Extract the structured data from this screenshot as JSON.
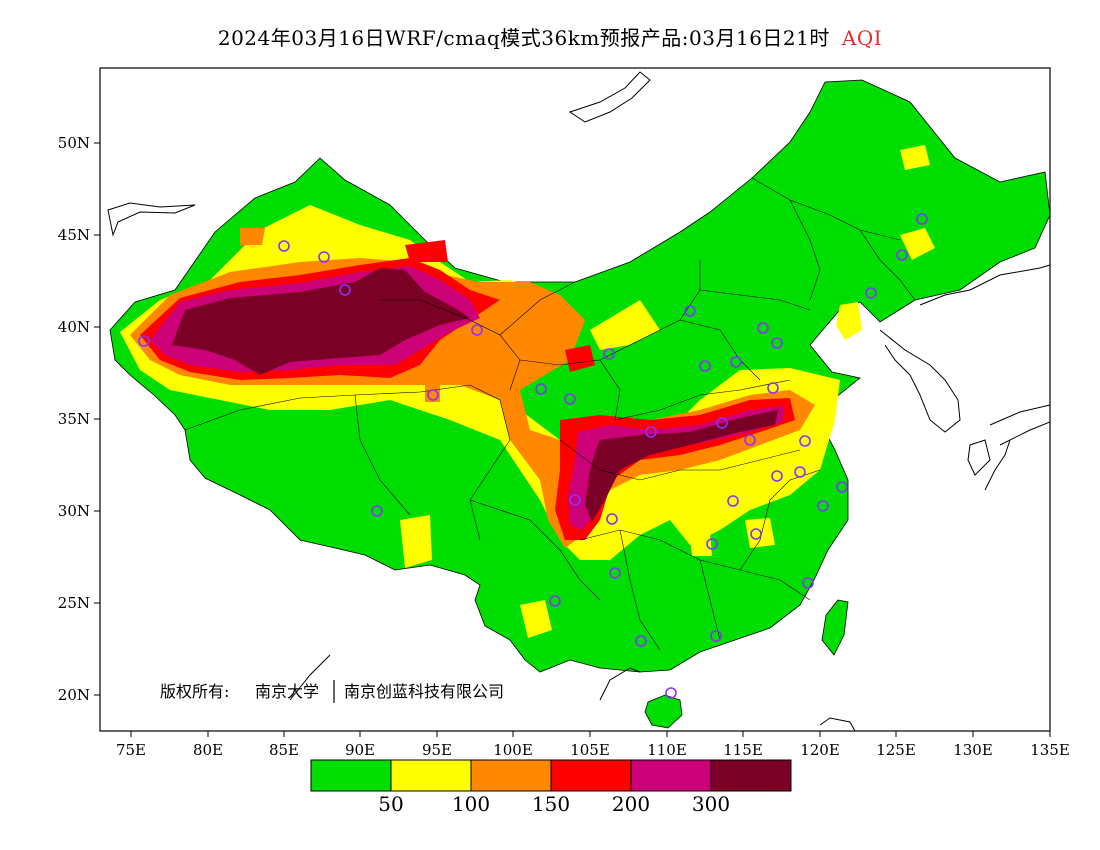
{
  "title": {
    "main": "2024年03月16日WRF/cmaq模式36km预报产品:03月16日21时",
    "variable": "AQI"
  },
  "colors": {
    "good": "#00dd00",
    "moderate": "#ffff00",
    "usg": "#ff8800",
    "unhealthy": "#ff0000",
    "very_unhealthy": "#cc0077",
    "hazardous": "#7a0026",
    "station_marker": "#8833ff"
  },
  "axes": {
    "lon_ticks": [
      "75E",
      "80E",
      "85E",
      "90E",
      "95E",
      "100E",
      "105E",
      "110E",
      "115E",
      "120E",
      "125E",
      "130E",
      "135E"
    ],
    "lat_ticks": [
      "50N",
      "45N",
      "40N",
      "35N",
      "30N",
      "25N",
      "20N"
    ]
  },
  "colorbar": {
    "bins": [
      "0-50",
      "50-100",
      "100-150",
      "150-200",
      "200-300",
      ">300"
    ],
    "labels": [
      "50",
      "100",
      "150",
      "200",
      "300"
    ]
  },
  "copyright": {
    "label": "版权所有:",
    "org1": "南京大学",
    "org2": "南京创蓝科技有限公司"
  }
}
